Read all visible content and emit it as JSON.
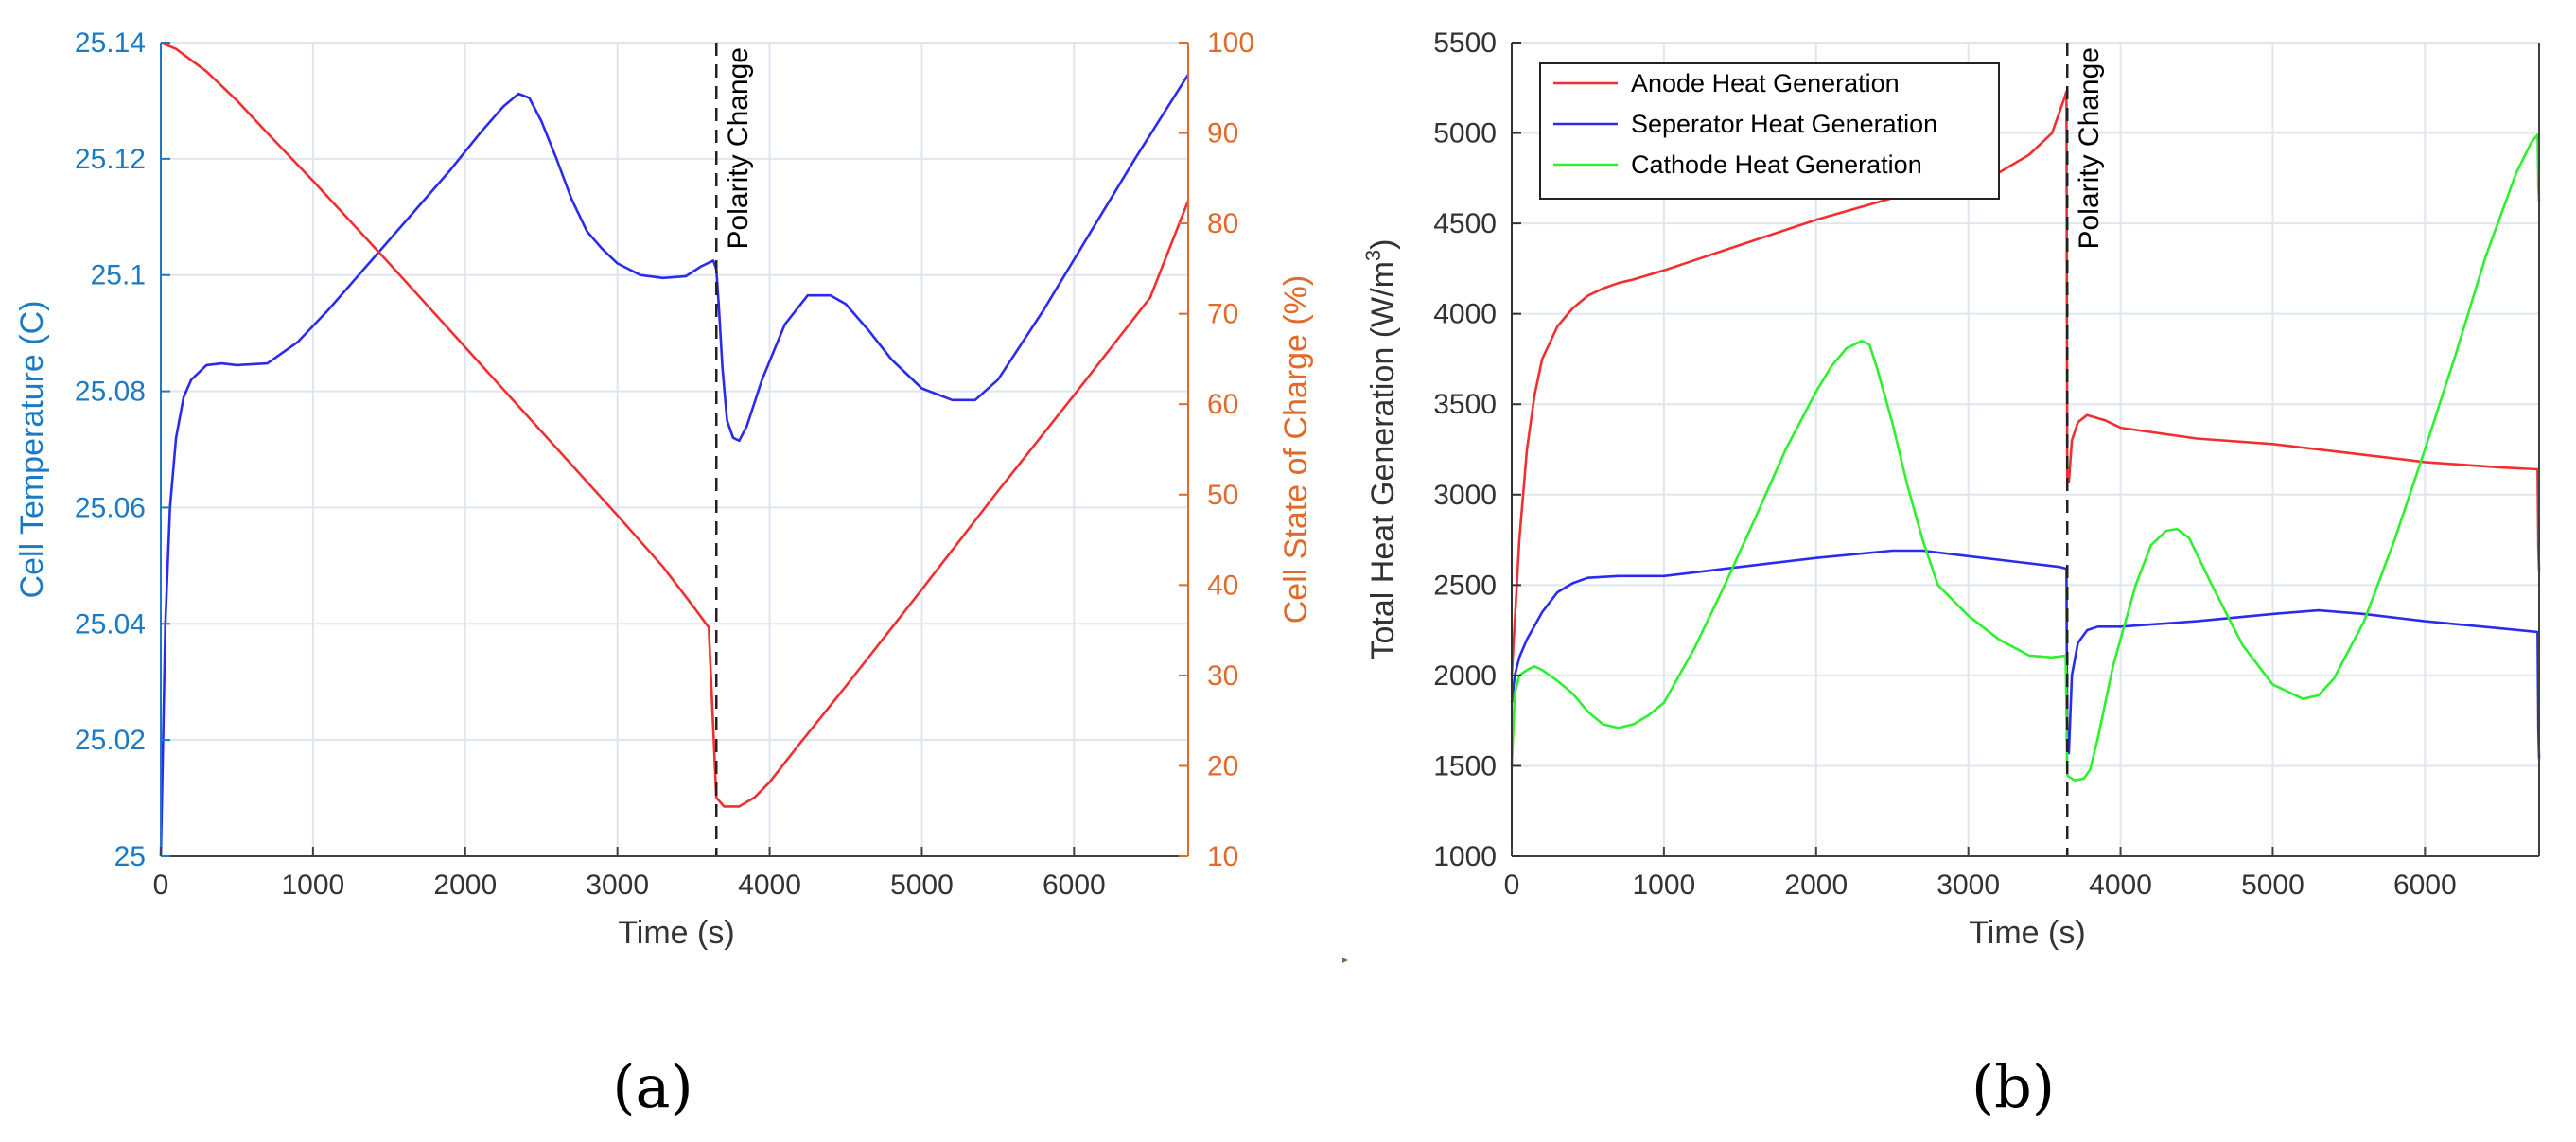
{
  "colors": {
    "temperature": "#1a7bc4",
    "soc": "#e06a2a",
    "temp_line": "#2b2bf0",
    "soc_line": "#f03030",
    "anode": "#f03030",
    "separator": "#2b2bf0",
    "cathode": "#2ef02e",
    "grid": "#dfe6ee",
    "axis": "#404040"
  },
  "chart_data": [
    {
      "type": "line",
      "panel_label": "(a)",
      "xlabel": "Time (s)",
      "ylabel": "Cell Temperature (C)",
      "ylabel_right": "Cell State of Charge (%)",
      "xlim": [
        0,
        6750
      ],
      "ylim": [
        25,
        25.14
      ],
      "ylim_right": [
        10,
        100
      ],
      "xticks": [
        "0",
        "1000",
        "2000",
        "3000",
        "4000",
        "5000",
        "6000"
      ],
      "xtick_values": [
        0,
        1000,
        2000,
        3000,
        4000,
        5000,
        6000
      ],
      "yticks": [
        "25",
        "25.02",
        "25.04",
        "25.06",
        "25.08",
        "25.1",
        "25.12",
        "25.14"
      ],
      "ytick_values": [
        25,
        25.02,
        25.04,
        25.06,
        25.08,
        25.1,
        25.12,
        25.14
      ],
      "yticks_right": [
        "10",
        "20",
        "30",
        "40",
        "50",
        "60",
        "70",
        "80",
        "90",
        "100"
      ],
      "ytick_values_right": [
        10,
        20,
        30,
        40,
        50,
        60,
        70,
        80,
        90,
        100
      ],
      "grid": true,
      "annotation": {
        "text": "Polarity Change",
        "x": 3650
      },
      "series": [
        {
          "name": "Cell Temperature",
          "axis": "left",
          "color_key": "temp_line",
          "x": [
            0,
            30,
            60,
            100,
            150,
            200,
            300,
            400,
            500,
            700,
            900,
            1100,
            1300,
            1500,
            1700,
            1900,
            2100,
            2250,
            2350,
            2420,
            2500,
            2600,
            2700,
            2800,
            2900,
            3000,
            3150,
            3300,
            3450,
            3550,
            3630,
            3650,
            3665,
            3690,
            3720,
            3760,
            3800,
            3850,
            3950,
            4100,
            4250,
            4400,
            4500,
            4650,
            4800,
            5000,
            5200,
            5350,
            5500,
            5800,
            6100,
            6400,
            6750
          ],
          "values": [
            25.0,
            25.04,
            25.06,
            25.072,
            25.079,
            25.082,
            25.0845,
            25.0848,
            25.0845,
            25.0848,
            25.0885,
            25.094,
            25.1,
            25.106,
            25.112,
            25.118,
            25.1245,
            25.129,
            25.1312,
            25.1305,
            25.1265,
            25.12,
            25.113,
            25.1075,
            25.1045,
            25.102,
            25.1,
            25.0995,
            25.0998,
            25.1015,
            25.1025,
            25.101,
            25.095,
            25.084,
            25.075,
            25.072,
            25.0715,
            25.074,
            25.082,
            25.0915,
            25.0965,
            25.0965,
            25.095,
            25.0905,
            25.0855,
            25.0805,
            25.0785,
            25.0785,
            25.082,
            25.094,
            25.107,
            25.12,
            25.1345
          ]
        },
        {
          "name": "Cell State of Charge",
          "axis": "right",
          "color_key": "soc_line",
          "x": [
            0,
            100,
            300,
            500,
            700,
            1000,
            1500,
            2000,
            2500,
            3000,
            3300,
            3500,
            3600,
            3650,
            3700,
            3800,
            3900,
            4000,
            4200,
            4500,
            5000,
            5500,
            6000,
            6500,
            6750
          ],
          "values": [
            100,
            99.3,
            96.8,
            93.6,
            90,
            84.7,
            75.6,
            66.3,
            57,
            47.7,
            42,
            37.6,
            35.3,
            16.5,
            15.5,
            15.5,
            16.5,
            18.2,
            22.5,
            28.8,
            39.5,
            50.4,
            61,
            71.8,
            82.5
          ]
        }
      ]
    },
    {
      "type": "line",
      "panel_label": "(b)",
      "xlabel": "Time (s)",
      "ylabel": "Total Heat Generation (W/m",
      "ylabel_sup": "3",
      "ylabel_tail": ")",
      "xlim": [
        0,
        6750
      ],
      "ylim": [
        1000,
        5500
      ],
      "xticks": [
        "0",
        "1000",
        "2000",
        "3000",
        "4000",
        "5000",
        "6000"
      ],
      "xtick_values": [
        0,
        1000,
        2000,
        3000,
        4000,
        5000,
        6000
      ],
      "yticks": [
        "1000",
        "1500",
        "2000",
        "2500",
        "3000",
        "3500",
        "4000",
        "4500",
        "5000",
        "5500"
      ],
      "ytick_values": [
        1000,
        1500,
        2000,
        2500,
        3000,
        3500,
        4000,
        4500,
        5000,
        5500
      ],
      "grid": true,
      "legend_position": "top-left",
      "annotation": {
        "text": "Polarity Change",
        "x": 3650
      },
      "series": [
        {
          "name": "Anode Heat Generation",
          "color_key": "anode",
          "x": [
            0,
            20,
            50,
            100,
            150,
            200,
            300,
            400,
            500,
            600,
            700,
            800,
            1000,
            1500,
            2000,
            2500,
            3000,
            3200,
            3400,
            3550,
            3630,
            3645,
            3650,
            3660,
            3680,
            3720,
            3780,
            3900,
            4000,
            4500,
            5000,
            5500,
            6000,
            6500,
            6740,
            6745,
            6750
          ],
          "values": [
            2000,
            2300,
            2750,
            3250,
            3550,
            3750,
            3930,
            4030,
            4100,
            4140,
            4170,
            4190,
            4240,
            4380,
            4520,
            4640,
            4700,
            4780,
            4880,
            5000,
            5190,
            5230,
            3100,
            3070,
            3300,
            3400,
            3440,
            3410,
            3370,
            3310,
            3280,
            3230,
            3180,
            3150,
            3140,
            2700,
            2580
          ]
        },
        {
          "name": "Seperator Heat Generation",
          "color_key": "separator",
          "x": [
            0,
            20,
            50,
            100,
            200,
            300,
            400,
            500,
            700,
            1000,
            1500,
            2000,
            2500,
            2700,
            3000,
            3300,
            3600,
            3645,
            3650,
            3660,
            3680,
            3720,
            3780,
            3850,
            4000,
            4500,
            5000,
            5300,
            5600,
            6000,
            6500,
            6740,
            6745,
            6750
          ],
          "values": [
            1850,
            2000,
            2100,
            2200,
            2350,
            2460,
            2510,
            2540,
            2550,
            2550,
            2600,
            2650,
            2690,
            2690,
            2660,
            2630,
            2600,
            2590,
            1600,
            1570,
            2000,
            2180,
            2250,
            2270,
            2270,
            2300,
            2340,
            2360,
            2340,
            2300,
            2260,
            2240,
            1700,
            1540
          ]
        },
        {
          "name": "Cathode Heat Generation",
          "color_key": "cathode",
          "x": [
            0,
            20,
            50,
            100,
            150,
            200,
            300,
            400,
            500,
            600,
            700,
            800,
            900,
            1000,
            1200,
            1400,
            1600,
            1800,
            2000,
            2100,
            2200,
            2300,
            2350,
            2400,
            2500,
            2600,
            2700,
            2800,
            3000,
            3200,
            3400,
            3550,
            3640,
            3650,
            3660,
            3700,
            3760,
            3800,
            3850,
            3950,
            4100,
            4200,
            4300,
            4370,
            4450,
            4600,
            4800,
            5000,
            5200,
            5300,
            5400,
            5600,
            5800,
            6000,
            6200,
            6400,
            6600,
            6700,
            6740,
            6745,
            6750
          ],
          "values": [
            1500,
            1900,
            2000,
            2030,
            2050,
            2030,
            1970,
            1900,
            1800,
            1730,
            1710,
            1730,
            1780,
            1850,
            2150,
            2500,
            2870,
            3250,
            3570,
            3710,
            3810,
            3850,
            3830,
            3700,
            3400,
            3050,
            2750,
            2500,
            2330,
            2200,
            2110,
            2100,
            2110,
            1450,
            1440,
            1420,
            1430,
            1480,
            1650,
            2050,
            2500,
            2720,
            2800,
            2810,
            2760,
            2500,
            2170,
            1950,
            1870,
            1890,
            1980,
            2300,
            2750,
            3250,
            3770,
            4320,
            4780,
            4950,
            4990,
            4700,
            4620
          ]
        }
      ]
    }
  ]
}
